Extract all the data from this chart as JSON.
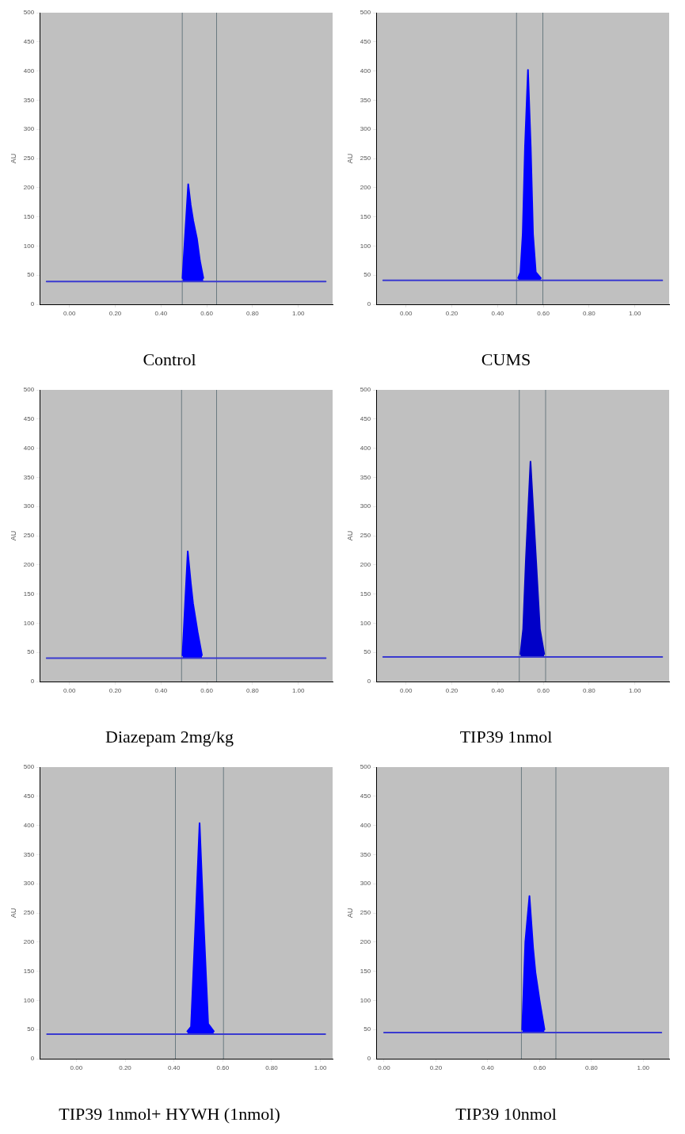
{
  "chart_data": [
    {
      "type": "line",
      "title": "Control",
      "ylabel": "AU",
      "xlim": [
        -0.13,
        1.15
      ],
      "ylim": [
        0,
        500
      ],
      "xticks": [
        {
          "value": 0,
          "label": "0.00"
        },
        {
          "value": 0.2,
          "label": "0.20"
        },
        {
          "value": 0.4,
          "label": "0.40"
        },
        {
          "value": 0.6,
          "label": "0.60"
        },
        {
          "value": 0.8,
          "label": "0.80"
        },
        {
          "value": 1,
          "label": "1.00"
        }
      ],
      "yticks": [
        0,
        50,
        100,
        150,
        200,
        250,
        300,
        350,
        400,
        450,
        500
      ],
      "grid": false,
      "legend": false,
      "marker": "none",
      "line_style": "solid",
      "ref_lines": [
        {
          "axis": "x",
          "value": 0.493,
          "color": "#6a7a80"
        },
        {
          "axis": "x",
          "value": 0.643,
          "color": "#6a7a80"
        }
      ],
      "series": [
        {
          "type": "line",
          "color": "#3a3ad0",
          "x": [
            -0.1,
            1.12
          ],
          "values": [
            39,
            39
          ]
        },
        {
          "type": "area",
          "color": "#0000ff",
          "x": [
            0.494,
            0.519,
            0.53,
            0.541,
            0.557,
            0.57,
            0.585
          ],
          "values": [
            45,
            206,
            170,
            143,
            113,
            75,
            45
          ]
        }
      ]
    },
    {
      "type": "line",
      "title": "CUMS",
      "ylabel": "AU",
      "xlim": [
        -0.13,
        1.15
      ],
      "ylim": [
        0,
        500
      ],
      "xticks": [
        {
          "value": 0,
          "label": "0.00"
        },
        {
          "value": 0.2,
          "label": "0.20"
        },
        {
          "value": 0.4,
          "label": "0.40"
        },
        {
          "value": 0.6,
          "label": "0.60"
        },
        {
          "value": 0.8,
          "label": "0.80"
        },
        {
          "value": 1,
          "label": "1.00"
        }
      ],
      "yticks": [
        0,
        50,
        100,
        150,
        200,
        250,
        300,
        350,
        400,
        450,
        500
      ],
      "grid": false,
      "legend": false,
      "marker": "none",
      "line_style": "solid",
      "ref_lines": [
        {
          "axis": "x",
          "value": 0.483,
          "color": "#6a7a80"
        },
        {
          "axis": "x",
          "value": 0.598,
          "color": "#6a7a80"
        }
      ],
      "series": [
        {
          "type": "line",
          "color": "#3a3ad0",
          "x": [
            -0.1,
            1.12
          ],
          "values": [
            41,
            41
          ]
        },
        {
          "type": "area",
          "color": "#0000ff",
          "x": [
            0.49,
            0.5,
            0.51,
            0.52,
            0.533,
            0.545,
            0.555,
            0.567,
            0.589
          ],
          "values": [
            45,
            55,
            120,
            270,
            402,
            270,
            120,
            55,
            45
          ]
        }
      ]
    },
    {
      "type": "line",
      "title": "Diazepam 2mg/kg",
      "ylabel": "AU",
      "xlim": [
        -0.13,
        1.15
      ],
      "ylim": [
        0,
        500
      ],
      "xticks": [
        {
          "value": 0,
          "label": "0.00"
        },
        {
          "value": 0.2,
          "label": "0.20"
        },
        {
          "value": 0.4,
          "label": "0.40"
        },
        {
          "value": 0.6,
          "label": "0.60"
        },
        {
          "value": 0.8,
          "label": "0.80"
        },
        {
          "value": 1,
          "label": "1.00"
        }
      ],
      "yticks": [
        0,
        50,
        100,
        150,
        200,
        250,
        300,
        350,
        400,
        450,
        500
      ],
      "grid": false,
      "legend": false,
      "marker": "none",
      "line_style": "solid",
      "ref_lines": [
        {
          "axis": "x",
          "value": 0.49,
          "color": "#6a7a80"
        },
        {
          "axis": "x",
          "value": 0.643,
          "color": "#6a7a80"
        }
      ],
      "series": [
        {
          "type": "line",
          "color": "#3a3ad0",
          "x": [
            -0.1,
            1.12
          ],
          "values": [
            40,
            40
          ]
        },
        {
          "type": "area",
          "color": "#0000ff",
          "x": [
            0.494,
            0.517,
            0.53,
            0.54,
            0.56,
            0.579
          ],
          "values": [
            45,
            223,
            170,
            134,
            85,
            45
          ]
        }
      ]
    },
    {
      "type": "line",
      "title": "TIP39 1nmol",
      "ylabel": "AU",
      "xlim": [
        -0.13,
        1.15
      ],
      "ylim": [
        0,
        500
      ],
      "xticks": [
        {
          "value": 0,
          "label": "0.00"
        },
        {
          "value": 0.2,
          "label": "0.20"
        },
        {
          "value": 0.4,
          "label": "0.40"
        },
        {
          "value": 0.6,
          "label": "0.60"
        },
        {
          "value": 0.8,
          "label": "0.80"
        },
        {
          "value": 1,
          "label": "1.00"
        }
      ],
      "yticks": [
        0,
        50,
        100,
        150,
        200,
        250,
        300,
        350,
        400,
        450,
        500
      ],
      "grid": false,
      "legend": false,
      "marker": "none",
      "line_style": "solid",
      "ref_lines": [
        {
          "axis": "x",
          "value": 0.495,
          "color": "#6a7a80"
        },
        {
          "axis": "x",
          "value": 0.61,
          "color": "#6a7a80"
        }
      ],
      "series": [
        {
          "type": "line",
          "color": "#3a3ad0",
          "x": [
            -0.1,
            1.12
          ],
          "values": [
            42,
            42
          ]
        },
        {
          "type": "area",
          "color": "#0000c8",
          "x": [
            0.5,
            0.512,
            0.524,
            0.544,
            0.568,
            0.585,
            0.604
          ],
          "values": [
            47,
            90,
            210,
            377,
            210,
            90,
            47
          ]
        }
      ]
    },
    {
      "type": "line",
      "title": "TIP39 1nmol+ HYWH (1nmol)",
      "ylabel": "AU",
      "xlim": [
        -0.15,
        1.05
      ],
      "ylim": [
        0,
        500
      ],
      "xticks": [
        {
          "value": 0,
          "label": "0.00"
        },
        {
          "value": 0.2,
          "label": "0.20"
        },
        {
          "value": 0.4,
          "label": "0.40"
        },
        {
          "value": 0.6,
          "label": "0.60"
        },
        {
          "value": 0.8,
          "label": "0.80"
        },
        {
          "value": 1,
          "label": "1.00"
        }
      ],
      "yticks": [
        0,
        50,
        100,
        150,
        200,
        250,
        300,
        350,
        400,
        450,
        500
      ],
      "grid": false,
      "legend": false,
      "marker": "none",
      "line_style": "solid",
      "ref_lines": [
        {
          "axis": "x",
          "value": 0.406,
          "color": "#6a7a80"
        },
        {
          "axis": "x",
          "value": 0.603,
          "color": "#6a7a80"
        }
      ],
      "series": [
        {
          "type": "line",
          "color": "#3a3ad0",
          "x": [
            -0.12,
            1.02
          ],
          "values": [
            42,
            42
          ]
        },
        {
          "type": "area",
          "color": "#0000ff",
          "x": [
            0.455,
            0.47,
            0.487,
            0.505,
            0.523,
            0.54,
            0.563
          ],
          "values": [
            47,
            55,
            220,
            404,
            220,
            60,
            47
          ]
        }
      ]
    },
    {
      "type": "line",
      "title": "TIP39 10nmol",
      "ylabel": "AU",
      "xlim": [
        -0.03,
        1.1
      ],
      "ylim": [
        0,
        500
      ],
      "xticks": [
        {
          "value": 0,
          "label": "0.00"
        },
        {
          "value": 0.2,
          "label": "0.20"
        },
        {
          "value": 0.4,
          "label": "0.40"
        },
        {
          "value": 0.6,
          "label": "0.60"
        },
        {
          "value": 0.8,
          "label": "0.80"
        },
        {
          "value": 1,
          "label": "1.00"
        }
      ],
      "yticks": [
        0,
        50,
        100,
        150,
        200,
        250,
        300,
        350,
        400,
        450,
        500
      ],
      "grid": false,
      "legend": false,
      "marker": "none",
      "line_style": "solid",
      "ref_lines": [
        {
          "axis": "x",
          "value": 0.53,
          "color": "#6a7a80"
        },
        {
          "axis": "x",
          "value": 0.663,
          "color": "#6a7a80"
        }
      ],
      "series": [
        {
          "type": "line",
          "color": "#3a3ad0",
          "x": [
            0,
            1.07
          ],
          "values": [
            45,
            45
          ]
        },
        {
          "type": "area",
          "color": "#0000ff",
          "x": [
            0.533,
            0.545,
            0.561,
            0.575,
            0.584,
            0.6,
            0.619
          ],
          "values": [
            50,
            200,
            279,
            190,
            148,
            100,
            50
          ]
        }
      ]
    }
  ]
}
